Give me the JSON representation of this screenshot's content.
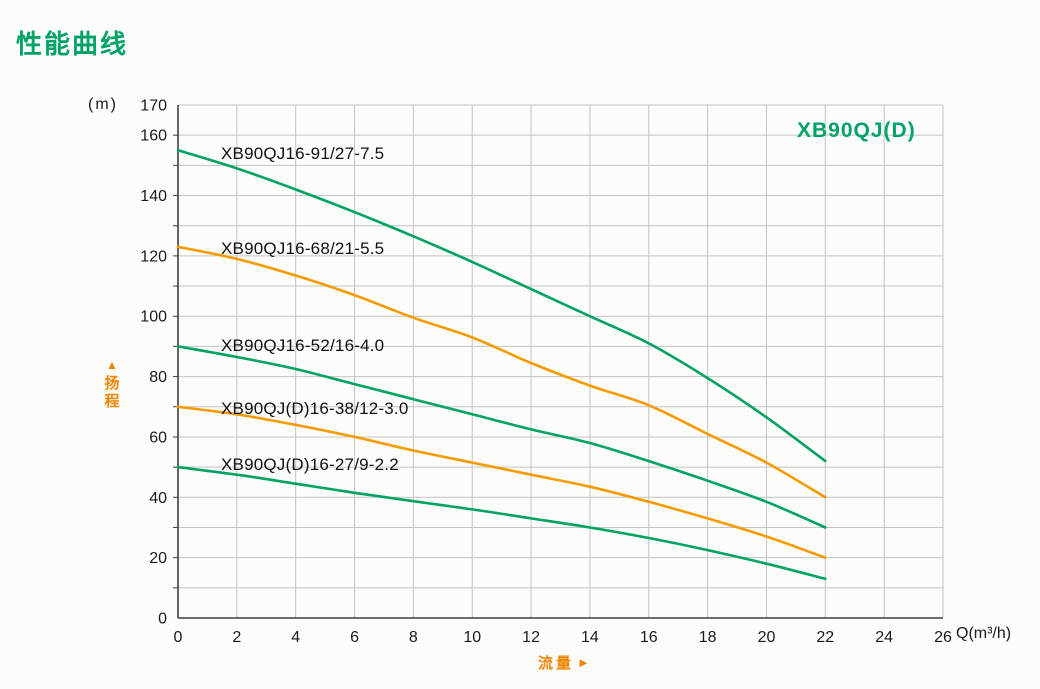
{
  "page": {
    "title": "性能曲线"
  },
  "chart": {
    "model_label": "XB90QJ(D)",
    "colors": {
      "green": "#00a361",
      "orange": "#f59b00",
      "label_orange": "#f08300",
      "grid": "#c4c4c4",
      "axis": "#3f3f3f",
      "text": "#1a1a1a"
    },
    "y_axis": {
      "unit": "(m)",
      "name": "扬程",
      "arrow": "▲",
      "tick_labels": [
        0,
        20,
        40,
        60,
        80,
        100,
        120,
        140,
        160,
        170
      ],
      "grid_step": 10
    },
    "x_axis": {
      "unit": "Q(m³/h)",
      "name": "流量",
      "arrow": "►",
      "tick_labels": [
        0,
        2,
        4,
        6,
        8,
        10,
        12,
        14,
        16,
        18,
        20,
        22,
        24,
        26
      ],
      "grid_step": 2
    }
  },
  "chart_data": {
    "type": "line",
    "title": "性能曲线",
    "model": "XB90QJ(D)",
    "xlabel": "流量 Q(m³/h)",
    "ylabel": "扬程 (m)",
    "xlim": [
      0,
      26
    ],
    "ylim": [
      0,
      170
    ],
    "grid": true,
    "legend_position": "inline-labels",
    "x": [
      0,
      2,
      4,
      6,
      8,
      10,
      12,
      14,
      16,
      18,
      20,
      22
    ],
    "series": [
      {
        "name": "XB90QJ16-91/27-7.5",
        "color": "green",
        "values": [
          155,
          149,
          142,
          134.5,
          126.5,
          118,
          109,
          100,
          91,
          79.5,
          66.5,
          52
        ]
      },
      {
        "name": "XB90QJ16-68/21-5.5",
        "color": "orange",
        "values": [
          123,
          119,
          113.5,
          107,
          99.5,
          93,
          84.5,
          77,
          70.5,
          61,
          51.5,
          40
        ]
      },
      {
        "name": "XB90QJ16-52/16-4.0",
        "color": "green",
        "values": [
          90,
          86.5,
          82.5,
          77.5,
          72.5,
          67.5,
          62.5,
          58,
          52,
          45.5,
          38.5,
          30
        ]
      },
      {
        "name": "XB90QJ(D)16-38/12-3.0",
        "color": "orange",
        "values": [
          70,
          67.5,
          64,
          60,
          55.5,
          51.5,
          47.5,
          43.5,
          38.5,
          33,
          27,
          20
        ]
      },
      {
        "name": "XB90QJ(D)16-27/9-2.2",
        "color": "green",
        "values": [
          50,
          47.5,
          44.5,
          41.5,
          38.7,
          36,
          33,
          30,
          26.5,
          22.5,
          18,
          13
        ]
      }
    ]
  }
}
